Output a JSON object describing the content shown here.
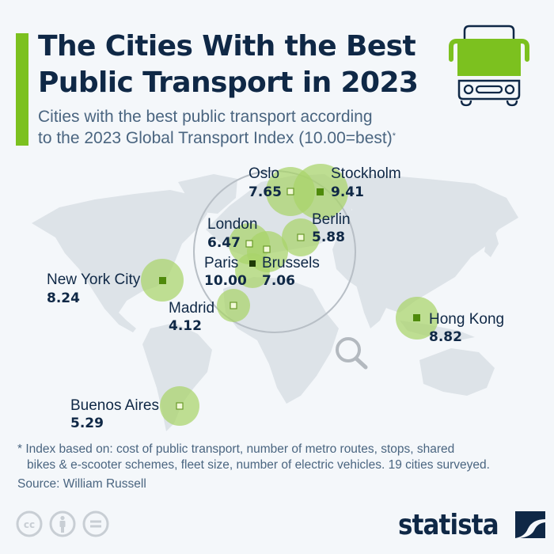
{
  "header": {
    "title": "The Cities With the Best Public Transport in 2023",
    "title_line1": "The Cities With the Best",
    "title_line2": "Public Transport in 2023",
    "subtitle_line1": "Cities with the best public transport according",
    "subtitle_line2": "to the 2023 Global Transport Index (10.00=best)",
    "subtitle_mark": "*",
    "icon": "bus-icon"
  },
  "colors": {
    "accent": "#7cc11f",
    "text_dark": "#0f2846",
    "text_muted": "#4a6580",
    "bubble": "#a9d46a",
    "marker_light": "#f2f9d8",
    "marker_mid": "#4f8a0b",
    "marker_dark": "#1e3a06",
    "land": "#dde3e8"
  },
  "map": {
    "magnifier_icon": "magnifier-icon",
    "cities": [
      {
        "name": "Oslo",
        "value": "7.65",
        "score": 7.65,
        "marker": "light"
      },
      {
        "name": "Stockholm",
        "value": "9.41",
        "score": 9.41,
        "marker": "mid"
      },
      {
        "name": "London",
        "value": "6.47",
        "score": 6.47,
        "marker": "light"
      },
      {
        "name": "Berlin",
        "value": "5.88",
        "score": 5.88,
        "marker": "light"
      },
      {
        "name": "Paris",
        "value": "10.00",
        "score": 10.0,
        "marker": "dark"
      },
      {
        "name": "Brussels",
        "value": "7.06",
        "score": 7.06,
        "marker": "light"
      },
      {
        "name": "New York City",
        "value": "8.24",
        "score": 8.24,
        "marker": "mid"
      },
      {
        "name": "Madrid",
        "value": "4.12",
        "score": 4.12,
        "marker": "light"
      },
      {
        "name": "Hong Kong",
        "value": "8.82",
        "score": 8.82,
        "marker": "mid"
      },
      {
        "name": "Buenos Aires",
        "value": "5.29",
        "score": 5.29,
        "marker": "light"
      }
    ]
  },
  "footer": {
    "footnote_line1": "* Index based on: cost of public transport, number of metro routes, stops, shared",
    "footnote_line2": "bikes & e-scooter schemes, fleet size, number of electric vehicles. 19 cities surveyed.",
    "source": "Source: William Russell",
    "license_icons": [
      "cc-icon",
      "attribution-icon",
      "no-derivatives-icon"
    ],
    "logo_text": "statista"
  }
}
